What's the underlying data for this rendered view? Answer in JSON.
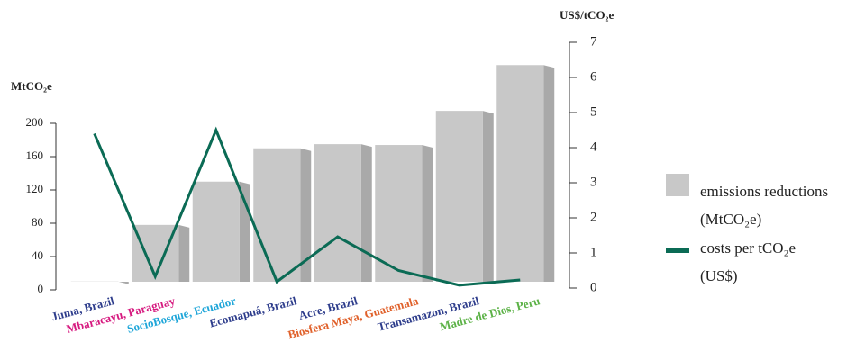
{
  "chart_data": {
    "type": "bar+line",
    "y_label": "MtCO₂e",
    "y2_label": "US$/tCO₂e",
    "categories": [
      "Juma, Brazil",
      "Mbaracayu, Paraguay",
      "SocioBosque, Ecuador",
      "Ecomapuá, Brazil",
      "Acre, Brazil",
      "Biosfera Maya, Guatemala",
      "Transamazon, Brazil",
      "Madre de Dios, Peru"
    ],
    "label_colors": [
      "#2e3d8c",
      "#d6197f",
      "#1fa6d9",
      "#2e3d8c",
      "#2e3d8c",
      "#e0612b",
      "#2e3d8c",
      "#5cb247"
    ],
    "series": [
      {
        "name": "emissions reductions (MtCO₂e)",
        "color": "#c8c8c8",
        "values": [
          10,
          78,
          130,
          170,
          175,
          174,
          215,
          270
        ]
      },
      {
        "name": "costs per tCO₂e (US$)",
        "color": "#0b6b55",
        "axis": "y2",
        "values": [
          4.4,
          0.33,
          4.5,
          0.18,
          1.46,
          0.5,
          0.08,
          0.23
        ]
      }
    ],
    "ylim": [
      0,
      200
    ],
    "yticks": [
      0,
      40,
      80,
      120,
      160,
      200
    ],
    "y2lim": [
      0,
      7
    ],
    "y2ticks": [
      0,
      1,
      2,
      3,
      4,
      5,
      6,
      7
    ],
    "grid": false,
    "legend": "right"
  }
}
